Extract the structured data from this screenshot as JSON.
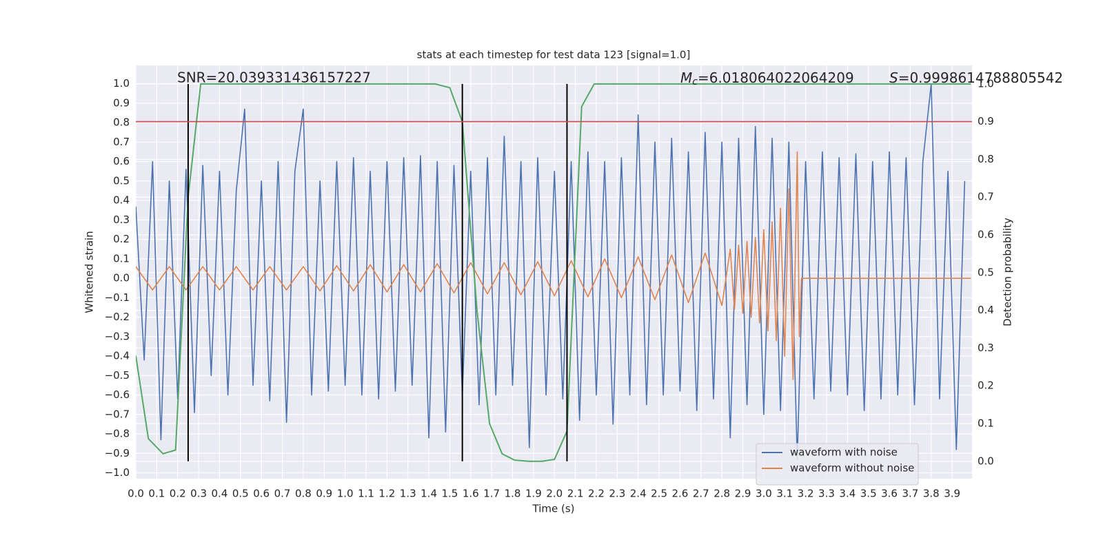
{
  "chart_data": {
    "type": "line",
    "title": "stats at each timestep for test data 123 [signal=1.0]",
    "xlabel": "Time (s)",
    "ylabel": "Whitened strain",
    "y2label": "Detection probability",
    "xlim": [
      0,
      3.995
    ],
    "ylim": [
      -1.03,
      1.094
    ],
    "y2lim": [
      -0.046,
      1.049
    ],
    "xticks": [
      {
        "value": 0,
        "label": "0.0"
      },
      0.1,
      0.2,
      0.3,
      0.4,
      0.5,
      0.6,
      0.7,
      0.8,
      0.9,
      {
        "value": 1,
        "label": "1.0"
      },
      1.1,
      1.2,
      1.3,
      1.4,
      1.5,
      1.6,
      1.7,
      1.8,
      1.9,
      {
        "value": 2,
        "label": "2.0"
      },
      2.1,
      2.2,
      2.3,
      2.4,
      2.5,
      2.6,
      2.7,
      2.8,
      2.9,
      {
        "value": 3,
        "label": "3.0"
      },
      3.1,
      3.2,
      3.3,
      3.4,
      3.5,
      3.6,
      3.7,
      3.8,
      3.9
    ],
    "yticks": [
      {
        "value": -1,
        "label": "−1.0"
      },
      {
        "value": -0.9,
        "label": "−0.9"
      },
      {
        "value": -0.8,
        "label": "−0.8"
      },
      {
        "value": -0.7,
        "label": "−0.7"
      },
      {
        "value": -0.6,
        "label": "−0.6"
      },
      {
        "value": -0.5,
        "label": "−0.5"
      },
      {
        "value": -0.4,
        "label": "−0.4"
      },
      {
        "value": -0.3,
        "label": "−0.3"
      },
      {
        "value": -0.2,
        "label": "−0.2"
      },
      {
        "value": -0.1,
        "label": "−0.1"
      },
      {
        "value": 0,
        "label": "0.0"
      },
      0.1,
      0.2,
      0.3,
      0.4,
      0.5,
      0.6,
      0.7,
      0.8,
      0.9,
      {
        "value": 1,
        "label": "1.0"
      }
    ],
    "y2ticks": [
      {
        "value": 0,
        "label": "0.0"
      },
      0.1,
      0.2,
      0.3,
      0.4,
      0.5,
      0.6,
      0.7,
      0.8,
      0.9,
      {
        "value": 1,
        "label": "1.0"
      }
    ],
    "grid": true,
    "legend": "lower right",
    "series": [
      {
        "name": "waveform with noise",
        "color": "#4c72b0",
        "x": [
          0,
          0.04,
          0.08,
          0.12,
          0.16,
          0.2,
          0.24,
          0.28,
          0.32,
          0.36,
          0.4,
          0.44,
          0.48,
          0.52,
          0.56,
          0.6,
          0.64,
          0.68,
          0.72,
          0.76,
          0.8,
          0.84,
          0.88,
          0.92,
          0.96,
          1,
          1.04,
          1.08,
          1.12,
          1.16,
          1.2,
          1.24,
          1.28,
          1.32,
          1.36,
          1.4,
          1.44,
          1.48,
          1.52,
          1.56,
          1.6,
          1.64,
          1.68,
          1.72,
          1.76,
          1.8,
          1.84,
          1.88,
          1.92,
          1.96,
          2,
          2.04,
          2.08,
          2.12,
          2.16,
          2.2,
          2.24,
          2.28,
          2.32,
          2.36,
          2.4,
          2.44,
          2.48,
          2.52,
          2.56,
          2.6,
          2.64,
          2.68,
          2.72,
          2.76,
          2.8,
          2.84,
          2.88,
          2.92,
          2.96,
          3,
          3.04,
          3.08,
          3.12,
          3.16,
          3.2,
          3.24,
          3.28,
          3.32,
          3.36,
          3.4,
          3.44,
          3.48,
          3.52,
          3.56,
          3.6,
          3.64,
          3.68,
          3.72,
          3.76,
          3.8,
          3.84,
          3.88,
          3.92,
          3.96
        ],
        "values": [
          0.37,
          -0.42,
          0.6,
          -0.83,
          0.5,
          -0.62,
          0.56,
          -0.69,
          0.58,
          -0.5,
          0.55,
          -0.6,
          0.45,
          0.87,
          -0.55,
          0.5,
          -0.63,
          0.6,
          -0.74,
          0.55,
          0.87,
          -0.6,
          0.5,
          -0.58,
          0.6,
          -0.55,
          0.62,
          -0.6,
          0.55,
          -0.62,
          0.6,
          -0.58,
          0.62,
          -0.55,
          0.63,
          -0.82,
          0.6,
          -0.79,
          0.58,
          -0.6,
          0.55,
          -0.65,
          0.62,
          -0.6,
          0.73,
          -0.55,
          0.6,
          -0.87,
          0.62,
          -0.6,
          0.55,
          -0.62,
          0.6,
          -0.73,
          0.65,
          -0.6,
          0.6,
          -0.75,
          0.62,
          -0.6,
          0.84,
          -0.65,
          0.7,
          -0.6,
          0.72,
          -0.58,
          0.65,
          -0.68,
          0.75,
          -0.62,
          0.7,
          -0.82,
          0.72,
          -0.65,
          0.78,
          -0.7,
          0.72,
          -0.68,
          0.7,
          -0.93,
          0.6,
          -0.62,
          0.65,
          -0.58,
          0.62,
          -0.6,
          0.64,
          -0.68,
          0.6,
          -0.62,
          0.65,
          -0.6,
          0.62,
          -0.65,
          0.6,
          1.0,
          -0.62,
          0.55,
          -0.88,
          0.5
        ]
      },
      {
        "name": "waveform without noise",
        "color": "#dd8452",
        "x": [
          0,
          0.08,
          0.16,
          0.24,
          0.32,
          0.4,
          0.48,
          0.56,
          0.64,
          0.72,
          0.8,
          0.88,
          0.96,
          1.04,
          1.12,
          1.2,
          1.28,
          1.36,
          1.44,
          1.52,
          1.6,
          1.68,
          1.76,
          1.84,
          1.92,
          2,
          2.08,
          2.16,
          2.24,
          2.32,
          2.4,
          2.48,
          2.56,
          2.64,
          2.72,
          2.8,
          2.84,
          2.86,
          2.88,
          2.9,
          2.92,
          2.94,
          2.96,
          2.98,
          3,
          3.02,
          3.04,
          3.06,
          3.08,
          3.1,
          3.12,
          3.14,
          3.16,
          3.17,
          3.18,
          3.99
        ],
        "values": [
          0.06,
          -0.06,
          0.06,
          -0.06,
          0.06,
          -0.06,
          0.06,
          -0.06,
          0.06,
          -0.06,
          0.06,
          -0.065,
          0.065,
          -0.065,
          0.07,
          -0.07,
          0.07,
          -0.07,
          0.075,
          -0.075,
          0.08,
          -0.08,
          0.08,
          -0.085,
          0.085,
          -0.09,
          0.09,
          -0.095,
          0.1,
          -0.1,
          0.11,
          -0.11,
          0.12,
          -0.125,
          0.13,
          -0.14,
          0.15,
          -0.16,
          0.17,
          -0.18,
          0.19,
          -0.2,
          0.21,
          -0.23,
          0.25,
          -0.27,
          0.29,
          -0.32,
          0.36,
          -0.4,
          0.46,
          -0.52,
          0.65,
          -0.3,
          0,
          0
        ]
      },
      {
        "color": "#55a868",
        "axis": "y2",
        "x": [
          0,
          0.06,
          0.13,
          0.19,
          0.25,
          0.31,
          1.43,
          1.5,
          1.56,
          1.63,
          1.69,
          1.75,
          1.81,
          1.88,
          1.94,
          2,
          2.06,
          2.13,
          2.19,
          3.99
        ],
        "values": [
          0.28,
          0.06,
          0.02,
          0.03,
          0.7,
          1.0,
          1.0,
          0.99,
          0.9,
          0.4,
          0.1,
          0.02,
          0.003,
          0,
          0,
          0.005,
          0.08,
          0.94,
          1.0,
          1.0
        ]
      }
    ],
    "vlines": [
      0.25,
      1.56,
      2.06
    ],
    "vline_color": "#000000",
    "hline": {
      "value": 0.9,
      "axis": "y2",
      "color": "#c44e52"
    },
    "annotations": {
      "snr": "SNR=20.039331436157227",
      "mc": {
        "symbol": "M",
        "subscript": "c",
        "text": "=6.018064022064209"
      },
      "s": {
        "symbol": "S",
        "text": "=0.9998614788805542"
      }
    }
  }
}
